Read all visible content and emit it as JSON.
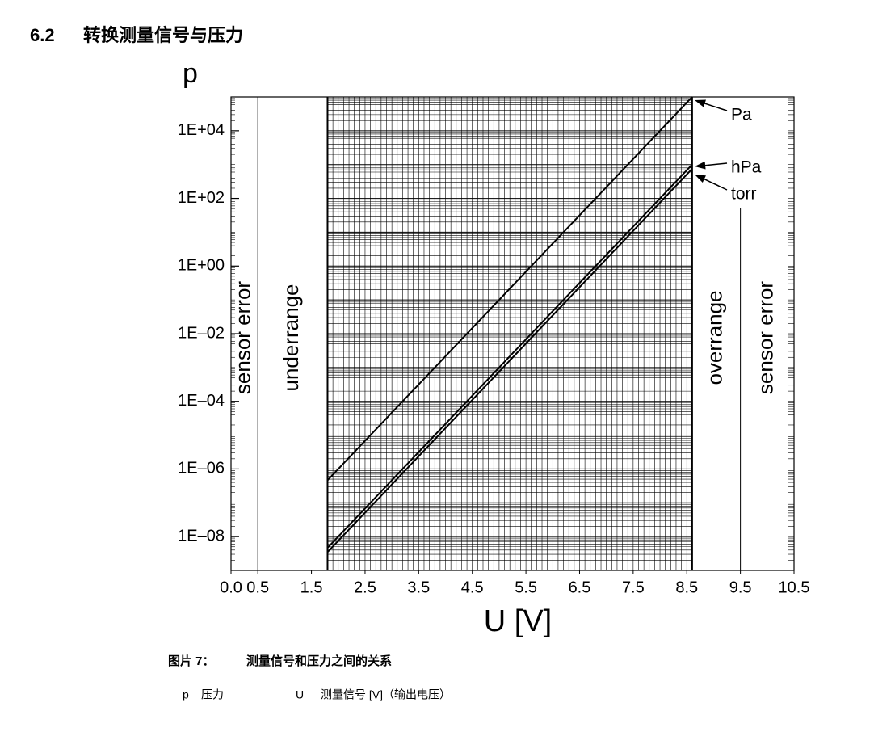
{
  "header": {
    "number": "6.2",
    "title": "转换测量信号与压力"
  },
  "chart_data": {
    "type": "line",
    "log_y": true,
    "grid": true,
    "y_label": "p",
    "x_label": "U [V]",
    "xlim": [
      0,
      10.5
    ],
    "xticks": [
      {
        "value": 0,
        "label": "0.0"
      },
      0.5,
      1.5,
      2.5,
      3.5,
      4.5,
      5.5,
      6.5,
      7.5,
      8.5,
      9.5,
      10.5
    ],
    "ylim": [
      1e-09,
      100000
    ],
    "yticks": [
      {
        "value": 10000,
        "label": "1E+04"
      },
      {
        "value": 100,
        "label": "1E+02"
      },
      {
        "value": 1,
        "label": "1E+00"
      },
      {
        "value": 0.01,
        "label": "1E–02"
      },
      {
        "value": 0.0001,
        "label": "1E–04"
      },
      {
        "value": 1e-06,
        "label": "1E–06"
      },
      {
        "value": 1e-08,
        "label": "1E–08"
      }
    ],
    "regions": [
      {
        "label": "sensor error",
        "x": [
          0,
          0.5
        ]
      },
      {
        "label": "underrange",
        "x": [
          0.5,
          1.8
        ]
      },
      {
        "label": "overrange",
        "x": [
          8.6,
          9.5
        ]
      },
      {
        "label": "sensor error",
        "x": [
          9.5,
          10.5
        ]
      }
    ],
    "x": [
      1.8,
      8.6
    ],
    "series": [
      {
        "name": "Pa",
        "color": "#000000",
        "values": [
          4.64e-07,
          100000
        ]
      },
      {
        "name": "hPa",
        "color": "#000000",
        "values": [
          4.64e-09,
          1000
        ]
      },
      {
        "name": "torr",
        "color": "#000000",
        "values": [
          3.48e-09,
          750
        ]
      }
    ]
  },
  "caption": {
    "label": "图片 7：",
    "text": "测量信号和压力之间的关系"
  },
  "notation": [
    {
      "symbol": "p",
      "meaning": "压力"
    },
    {
      "symbol": "U",
      "meaning": "测量信号 [V]（输出电压）"
    }
  ]
}
